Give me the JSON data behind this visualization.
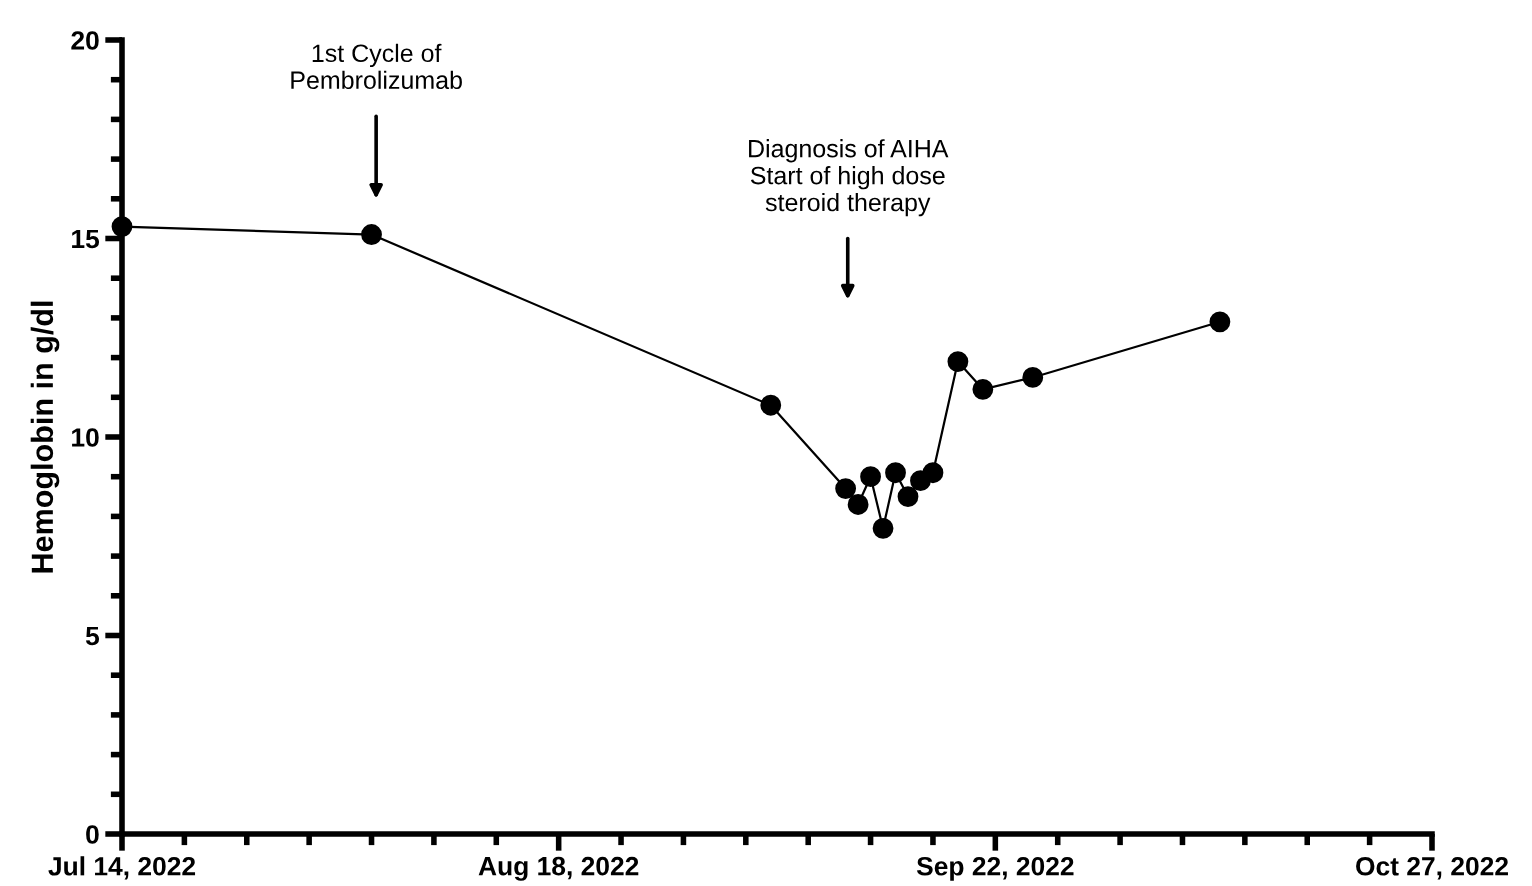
{
  "chart_data": {
    "type": "line",
    "ylabel": "Hemoglobin in g/dl",
    "x": [
      "2022-07-14",
      "2022-08-03",
      "2022-09-04",
      "2022-09-10",
      "2022-09-11",
      "2022-09-12",
      "2022-09-13",
      "2022-09-14",
      "2022-09-15",
      "2022-09-16",
      "2022-09-17",
      "2022-09-19",
      "2022-09-21",
      "2022-09-25",
      "2022-10-10"
    ],
    "series": [
      {
        "color": "#000000",
        "values": [
          15.3,
          15.1,
          10.8,
          8.7,
          8.3,
          9.0,
          7.7,
          9.1,
          8.5,
          8.9,
          9.1,
          11.9,
          11.2,
          11.5,
          12.9
        ]
      }
    ],
    "xlim": [
      "2022-07-14",
      "2022-10-27"
    ],
    "xticks": [
      {
        "value": "2022-07-14",
        "label": "Jul 14, 2022"
      },
      {
        "value": "2022-08-18",
        "label": "Aug 18, 2022"
      },
      {
        "value": "2022-09-22",
        "label": "Sep 22, 2022"
      },
      {
        "value": "2022-10-27",
        "label": "Oct 27, 2022"
      }
    ],
    "ylim": [
      0,
      20
    ],
    "yticks": [
      0,
      5,
      10,
      15,
      20
    ],
    "grid": false,
    "marker": "circle",
    "line_style": "solid",
    "annotations": [
      "1st Cycle of\nPembrolizumab",
      "Diagnosis of AIHA\nStart of high dose\nsteroid therapy"
    ]
  }
}
